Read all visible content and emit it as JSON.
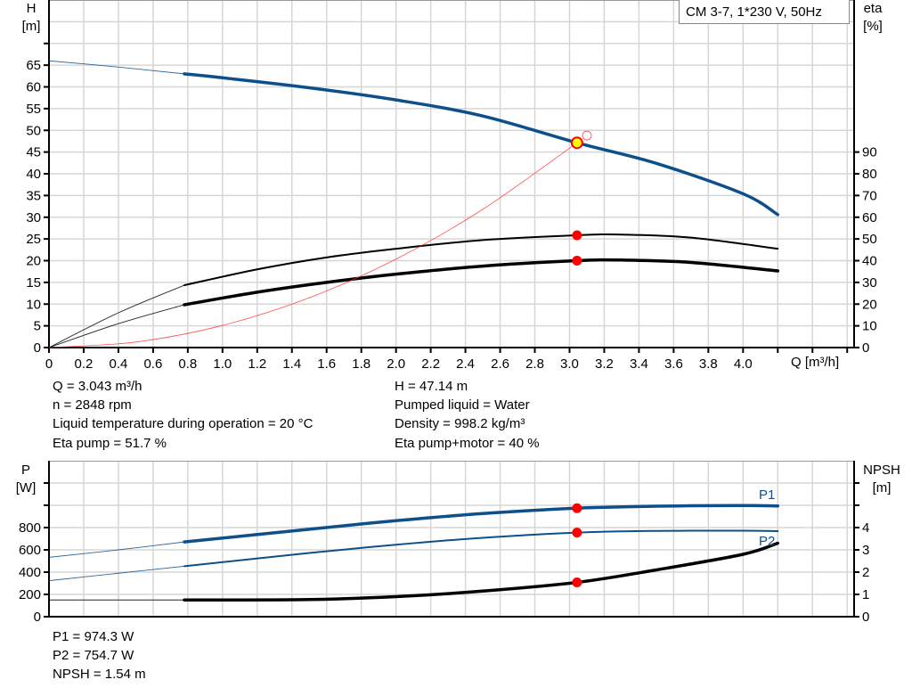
{
  "chart_data": [
    {
      "type": "line",
      "title": "",
      "legend": "CM 3-7, 1*230 V, 50Hz",
      "legend_position": "top-right",
      "xlabel": "Q [m³/h]",
      "ylabel_left": {
        "name": "H",
        "unit": "[m]"
      },
      "ylabel_right": {
        "name": "eta",
        "unit": "[%]"
      },
      "xlim": [
        0,
        4.64
      ],
      "ylim_left": [
        0,
        80
      ],
      "ylim_right": [
        0,
        160
      ],
      "grid": true,
      "x_ticks": [
        "0",
        "0.2",
        "0.4",
        "0.6",
        "0.8",
        "1.0",
        "1.2",
        "1.4",
        "1.6",
        "1.8",
        "2.0",
        "2.2",
        "2.4",
        "2.6",
        "2.8",
        "3.0",
        "3.2",
        "3.4",
        "3.6",
        "3.8",
        "4.0"
      ],
      "y_left_ticks": [
        "0",
        "5",
        "10",
        "15",
        "20",
        "25",
        "30",
        "35",
        "40",
        "45",
        "50",
        "55",
        "60",
        "65"
      ],
      "y_right_ticks": [
        "0",
        "10",
        "20",
        "30",
        "40",
        "50",
        "60",
        "70",
        "80",
        "90"
      ],
      "series": [
        {
          "key": "H",
          "axis": "left",
          "color": "#0d4f8b",
          "thin": [
            [
              0,
              66
            ],
            [
              0.39,
              64.6
            ],
            [
              0.78,
              63
            ]
          ],
          "thick": [
            [
              0.78,
              63
            ],
            [
              1.0,
              62.1
            ],
            [
              1.5,
              59.8
            ],
            [
              2.0,
              57
            ],
            [
              2.5,
              53.3
            ],
            [
              3.043,
              47.14
            ],
            [
              3.5,
              42.4
            ],
            [
              4.0,
              35.4
            ],
            [
              4.2,
              30.6
            ]
          ]
        },
        {
          "key": "eta_pump",
          "axis": "right",
          "color": "#000000",
          "thin": [
            [
              0,
              0
            ],
            [
              0.4,
              16
            ],
            [
              0.78,
              28.7
            ]
          ],
          "thick": [
            [
              0.78,
              28.7
            ],
            [
              1.2,
              36
            ],
            [
              1.6,
              41.5
            ],
            [
              2.0,
              45.5
            ],
            [
              2.5,
              49.5
            ],
            [
              3.043,
              51.7
            ],
            [
              3.3,
              52
            ],
            [
              3.7,
              50.6
            ],
            [
              4.2,
              45.5
            ]
          ],
          "thick_width": 2
        },
        {
          "key": "eta_pump_motor",
          "axis": "right",
          "color": "#000000",
          "thin": [
            [
              0,
              0
            ],
            [
              0.4,
              11
            ],
            [
              0.78,
              19.7
            ]
          ],
          "thick": [
            [
              0.78,
              19.7
            ],
            [
              1.2,
              25.5
            ],
            [
              1.6,
              30
            ],
            [
              2.0,
              33.8
            ],
            [
              2.5,
              37.5
            ],
            [
              3.043,
              40
            ],
            [
              3.3,
              40.3
            ],
            [
              3.7,
              39.2
            ],
            [
              4.2,
              35.3
            ]
          ],
          "thick_width": 3.5
        },
        {
          "key": "system_curve",
          "axis": "left",
          "color": "#ff3030",
          "thin": [
            [
              0,
              0
            ],
            [
              0.5,
              1.27
            ],
            [
              1.0,
              5.09
            ],
            [
              1.5,
              11.45
            ],
            [
              2.0,
              20.36
            ],
            [
              2.5,
              31.82
            ],
            [
              3.043,
              47.14
            ]
          ]
        }
      ],
      "duty_points": [
        {
          "q": 3.043,
          "v": 47.14,
          "axis": "left",
          "style": "yellow"
        },
        {
          "q": 3.043,
          "v": 51.7,
          "axis": "right",
          "style": "red"
        },
        {
          "q": 3.043,
          "v": 40,
          "axis": "right",
          "style": "red"
        },
        {
          "q": 3.1,
          "v": 48.8,
          "axis": "left",
          "style": "open"
        }
      ]
    },
    {
      "type": "line",
      "title": "",
      "xlim": [
        0,
        4.64
      ],
      "ylabel_left": {
        "name": "P",
        "unit": "[W]"
      },
      "ylabel_right": {
        "name": "NPSH",
        "unit": "[m]"
      },
      "ylim_left": [
        0,
        1400
      ],
      "ylim_right": [
        0,
        7
      ],
      "grid": true,
      "y_left_ticks": [
        "0",
        "200",
        "400",
        "600",
        "800"
      ],
      "y_right_ticks": [
        "0",
        "1",
        "2",
        "3",
        "4"
      ],
      "series": [
        {
          "key": "P1",
          "name": "P1",
          "axis": "left",
          "color": "#0d4f8b",
          "thin": [
            [
              0,
              533
            ],
            [
              0.4,
              600
            ],
            [
              0.78,
              671
            ]
          ],
          "thick": [
            [
              0.78,
              671
            ],
            [
              1.5,
              785
            ],
            [
              2.0,
              862
            ],
            [
              2.5,
              926
            ],
            [
              3.043,
              974.3
            ],
            [
              3.5,
              992
            ],
            [
              4.0,
              998
            ],
            [
              4.2,
              994
            ]
          ],
          "thick_width": 3.5
        },
        {
          "key": "P2",
          "name": "P2",
          "axis": "left",
          "color": "#0d4f8b",
          "thin": [
            [
              0,
              323
            ],
            [
              0.4,
              390
            ],
            [
              0.78,
              453
            ]
          ],
          "thick": [
            [
              0.78,
              453
            ],
            [
              1.5,
              572
            ],
            [
              2.0,
              646
            ],
            [
              2.5,
              708
            ],
            [
              3.043,
              754.7
            ],
            [
              3.5,
              770
            ],
            [
              4.0,
              772
            ],
            [
              4.2,
              768
            ]
          ],
          "thick_width": 2
        },
        {
          "key": "NPSH",
          "axis": "right",
          "color": "#000000",
          "thin": [
            [
              0,
              0.75
            ],
            [
              0.78,
              0.75
            ]
          ],
          "thick": [
            [
              0.78,
              0.75
            ],
            [
              1.5,
              0.77
            ],
            [
              2.0,
              0.9
            ],
            [
              2.5,
              1.15
            ],
            [
              3.043,
              1.54
            ],
            [
              3.5,
              2.1
            ],
            [
              4.0,
              2.8
            ],
            [
              4.2,
              3.3
            ]
          ],
          "thick_width": 3.5
        }
      ],
      "duty_points": [
        {
          "q": 3.043,
          "v": 974.3,
          "axis": "left",
          "style": "red"
        },
        {
          "q": 3.043,
          "v": 754.7,
          "axis": "left",
          "style": "red"
        },
        {
          "q": 3.043,
          "v": 1.54,
          "axis": "right",
          "style": "red"
        }
      ]
    }
  ],
  "info_top": {
    "q": "Q = 3.043 m³/h",
    "n": "n = 2848 rpm",
    "temp": "Liquid temperature during operation = 20 °C",
    "eta_pump": "Eta pump = 51.7 %",
    "h": "H = 47.14 m",
    "liquid": "Pumped liquid = Water",
    "density": "Density = 998.2 kg/m³",
    "eta_pm": "Eta pump+motor = 40 %"
  },
  "info_bottom": {
    "p1": "P1 = 974.3 W",
    "p2": "P2 = 754.7 W",
    "npsh": "NPSH = 1.54 m"
  }
}
